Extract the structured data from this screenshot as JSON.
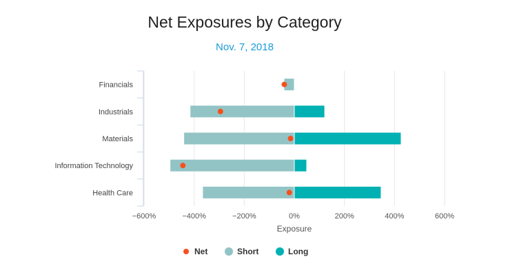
{
  "chart_data": {
    "type": "bar",
    "orientation": "horizontal",
    "stacked": false,
    "title": "Net Exposures by Category",
    "subtitle": "Nov. 7, 2018",
    "xlabel": "Exposure",
    "ylabel": "",
    "categories": [
      "Financials",
      "Industrials",
      "Materials",
      "Information Technology",
      "Health Care"
    ],
    "xlim": [
      -600,
      600
    ],
    "x_ticks": [
      "−600%",
      "−400%",
      "−200%",
      "0%",
      "200%",
      "400%",
      "600%"
    ],
    "x_tick_values": [
      -600,
      -400,
      -200,
      0,
      200,
      400,
      600
    ],
    "series": [
      {
        "name": "Net",
        "kind": "scatter",
        "color": "#f4511e",
        "values": [
          -40,
          -295,
          -15,
          -445,
          -20
        ]
      },
      {
        "name": "Short",
        "kind": "bar",
        "color": "#93c4c5",
        "values": [
          -40,
          -415,
          -440,
          -495,
          -365
        ]
      },
      {
        "name": "Long",
        "kind": "bar",
        "color": "#00b1b3",
        "values": [
          0,
          120,
          425,
          48,
          345
        ]
      }
    ],
    "grid": "vertical",
    "legend_position": "bottom-center",
    "colors": {
      "subtitle": "#1a9bd7",
      "gridline": "#e6e6e6",
      "axis": "#c9d6e8"
    }
  }
}
